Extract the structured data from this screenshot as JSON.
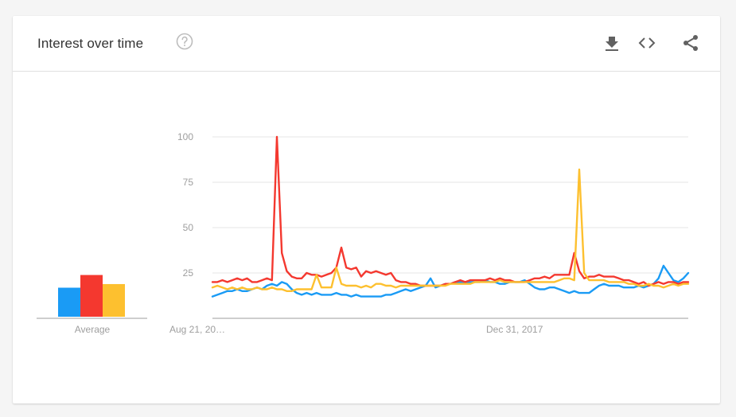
{
  "header": {
    "title": "Interest over time",
    "help_icon": "help-circle-icon",
    "download_icon": "download-icon",
    "embed_icon": "code-embed-icon",
    "share_icon": "share-icon"
  },
  "colors": {
    "blue": "#1a9bf5",
    "red": "#f4382f",
    "yellow": "#fdc02f",
    "grid": "#e6e6e6",
    "axis": "#9e9e9e"
  },
  "average": {
    "label": "Average",
    "values": [
      16,
      23,
      18
    ]
  },
  "chart_data": {
    "type": "line",
    "x_tick_labels": [
      "Aug 21, 20…",
      "Dec 31, 2017"
    ],
    "y_ticks": [
      25,
      50,
      75,
      100
    ],
    "ylim": [
      0,
      100
    ],
    "grid": true,
    "legend": "none",
    "series": [
      {
        "color": "#1a9bf5",
        "values": [
          12,
          13,
          14,
          15,
          15,
          16,
          15,
          15,
          16,
          17,
          16,
          18,
          19,
          18,
          20,
          19,
          16,
          14,
          13,
          14,
          13,
          14,
          13,
          13,
          13,
          14,
          13,
          13,
          12,
          13,
          12,
          12,
          12,
          12,
          12,
          13,
          13,
          14,
          15,
          16,
          15,
          16,
          17,
          18,
          22,
          17,
          18,
          19,
          19,
          20,
          20,
          20,
          20,
          20,
          20,
          21,
          20,
          20,
          19,
          19,
          20,
          20,
          20,
          21,
          19,
          17,
          16,
          16,
          17,
          17,
          16,
          15,
          14,
          15,
          14,
          14,
          14,
          16,
          18,
          19,
          18,
          18,
          18,
          17,
          17,
          17,
          18,
          17,
          18,
          19,
          22,
          29,
          25,
          21,
          20,
          22,
          25
        ]
      },
      {
        "color": "#f4382f",
        "values": [
          20,
          20,
          21,
          20,
          21,
          22,
          21,
          22,
          20,
          20,
          21,
          22,
          21,
          100,
          36,
          26,
          23,
          22,
          22,
          25,
          24,
          24,
          23,
          24,
          25,
          28,
          39,
          28,
          27,
          28,
          23,
          26,
          25,
          26,
          25,
          24,
          25,
          21,
          20,
          20,
          19,
          19,
          18,
          18,
          18,
          18,
          18,
          19,
          19,
          20,
          21,
          20,
          21,
          21,
          21,
          21,
          22,
          21,
          22,
          21,
          21,
          20,
          20,
          20,
          21,
          22,
          22,
          23,
          22,
          24,
          24,
          24,
          24,
          36,
          26,
          22,
          23,
          23,
          24,
          23,
          23,
          23,
          22,
          21,
          21,
          20,
          19,
          20,
          18,
          19,
          20,
          19,
          20,
          20,
          19,
          20,
          20
        ]
      },
      {
        "color": "#fdc02f",
        "values": [
          17,
          18,
          17,
          16,
          17,
          16,
          17,
          16,
          16,
          17,
          16,
          16,
          17,
          16,
          16,
          15,
          15,
          16,
          16,
          16,
          16,
          24,
          17,
          17,
          17,
          28,
          19,
          18,
          18,
          18,
          17,
          18,
          17,
          19,
          19,
          18,
          18,
          17,
          18,
          18,
          18,
          18,
          18,
          18,
          18,
          18,
          18,
          18,
          19,
          19,
          19,
          19,
          19,
          20,
          20,
          20,
          20,
          20,
          21,
          20,
          20,
          20,
          20,
          20,
          20,
          20,
          20,
          20,
          20,
          20,
          21,
          22,
          22,
          21,
          82,
          25,
          21,
          21,
          21,
          21,
          20,
          20,
          20,
          20,
          19,
          19,
          18,
          18,
          19,
          18,
          18,
          17,
          18,
          19,
          18,
          19,
          19
        ]
      }
    ]
  }
}
